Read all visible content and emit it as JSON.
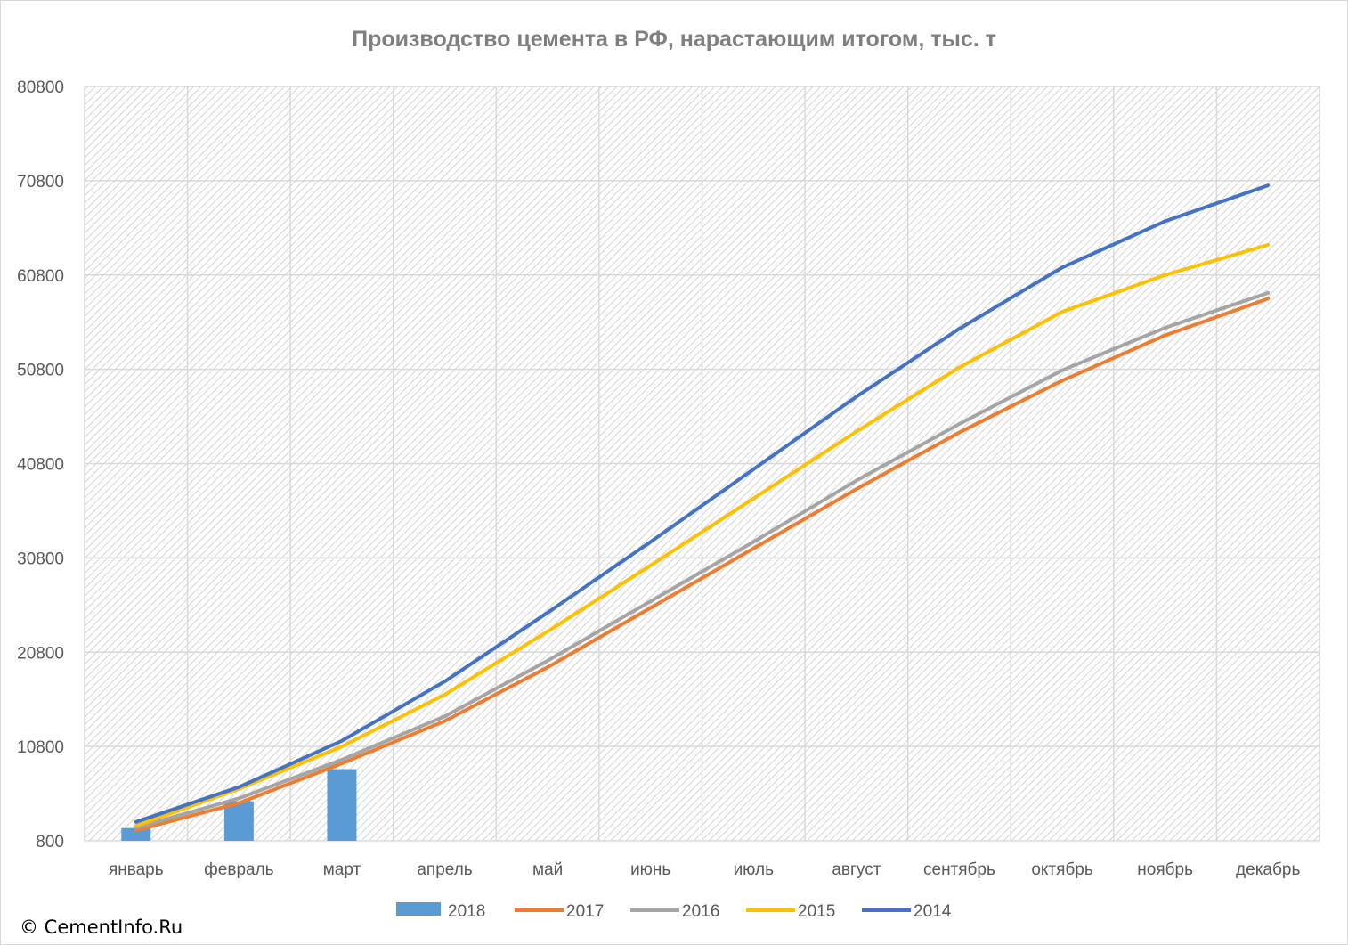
{
  "chart_data": {
    "type": "line",
    "title": "Производство цемента в РФ, нарастающим итогом, тыс. т",
    "xlabel": "",
    "ylabel": "",
    "categories": [
      "январь",
      "февраль",
      "март",
      "апрель",
      "май",
      "июнь",
      "июль",
      "август",
      "сентябрь",
      "октябрь",
      "ноябрь",
      "декабрь"
    ],
    "ylim": [
      800,
      80800
    ],
    "yticks": [
      "80800",
      "70800",
      "60800",
      "50800",
      "40800",
      "30800",
      "20800",
      "10800",
      "800"
    ],
    "ytick_values": [
      80800,
      70800,
      60800,
      50800,
      40800,
      30800,
      20800,
      10800,
      800
    ],
    "grid": true,
    "legend_position": "bottom",
    "series": [
      {
        "name": "2018",
        "kind": "bar",
        "color": "#5b9bd5",
        "values": [
          2150,
          5000,
          8400,
          null,
          null,
          null,
          null,
          null,
          null,
          null,
          null,
          null
        ]
      },
      {
        "name": "2017",
        "kind": "line",
        "color": "#ed7d31",
        "values": [
          1900,
          4800,
          9000,
          13500,
          19200,
          25500,
          31800,
          38100,
          44100,
          49600,
          54400,
          58300
        ]
      },
      {
        "name": "2016",
        "kind": "line",
        "color": "#a5a5a5",
        "values": [
          2200,
          5300,
          9400,
          14000,
          19900,
          26200,
          32500,
          39000,
          45000,
          50700,
          55200,
          58900
        ]
      },
      {
        "name": "2015",
        "kind": "line",
        "color": "#ffc000",
        "values": [
          2400,
          6300,
          10800,
          16300,
          23000,
          30000,
          37100,
          44200,
          51000,
          56900,
          60800,
          64000
        ]
      },
      {
        "name": "2014",
        "kind": "line",
        "color": "#4472c4",
        "values": [
          2800,
          6500,
          11400,
          17700,
          25000,
          32500,
          40200,
          47900,
          55100,
          61600,
          66500,
          70300
        ]
      }
    ]
  },
  "copyright": "© CementInfo.Ru"
}
